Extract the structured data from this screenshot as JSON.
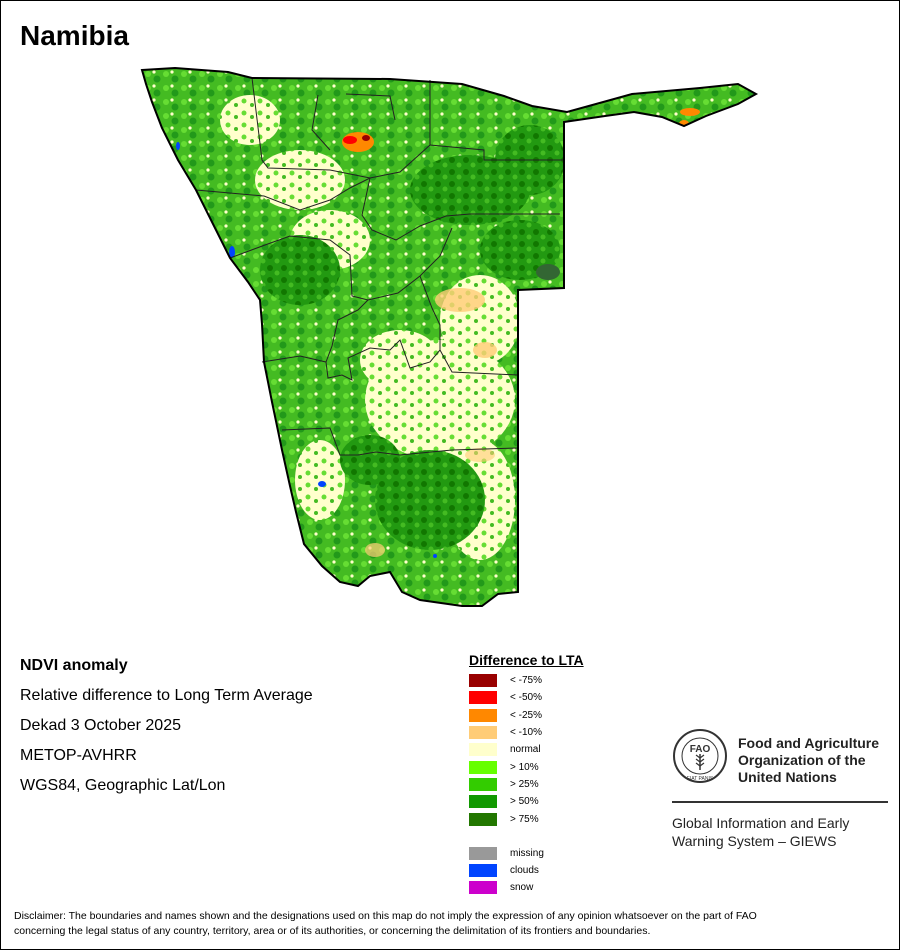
{
  "title": "Namibia",
  "info": {
    "product": "NDVI anomaly",
    "description": "Relative difference to Long Term Average",
    "period": "Dekad 3 October 2025",
    "sensor": "METOP-AVHRR",
    "projection": "WGS84, Geographic Lat/Lon"
  },
  "legend": {
    "title": "Difference to LTA",
    "items": [
      {
        "label": "< -75%",
        "color": "#990000"
      },
      {
        "label": "< -50%",
        "color": "#ff0000"
      },
      {
        "label": "< -25%",
        "color": "#ff8800"
      },
      {
        "label": "< -10%",
        "color": "#ffcc77"
      },
      {
        "label": "normal",
        "color": "#ffffcc"
      },
      {
        "label": "> 10%",
        "color": "#66ff00"
      },
      {
        "label": "> 25%",
        "color": "#33cc00"
      },
      {
        "label": "> 50%",
        "color": "#119900"
      },
      {
        "label": "> 75%",
        "color": "#227700"
      }
    ],
    "extra": [
      {
        "label": "missing",
        "color": "#999999"
      },
      {
        "label": "clouds",
        "color": "#0044ff"
      },
      {
        "label": "snow",
        "color": "#cc00cc"
      }
    ]
  },
  "organization": {
    "emblem_letters": "FAO",
    "emblem_motto": "FIAT PANIS",
    "name_line1": "Food and Agriculture",
    "name_line2": "Organization of the",
    "name_line3": "United Nations",
    "system_line1": "Global Information and Early",
    "system_line2": "Warning System – GIEWS"
  },
  "disclaimer_line1": "Disclaimer: The boundaries and names shown and the designations used on this map do not imply the expression of any opinion whatsoever on the part of FAO",
  "disclaimer_line2": "concerning the legal status of any country, territory, area or of its authorities, or concerning the delimitation of its frontiers and boundaries."
}
